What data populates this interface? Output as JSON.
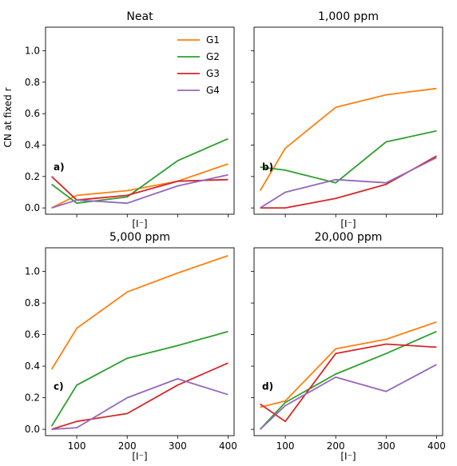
{
  "figure": {
    "ylabel": "CN at fixed r",
    "xlabel": "[I⁻]"
  },
  "legend": {
    "entries": [
      {
        "name": "G1",
        "color": "#ff7f0e"
      },
      {
        "name": "G2",
        "color": "#2ca02c"
      },
      {
        "name": "G3",
        "color": "#d62728"
      },
      {
        "name": "G4",
        "color": "#9467bd"
      }
    ]
  },
  "axes": {
    "xticks": [
      100,
      200,
      300,
      400
    ],
    "yticks": [
      "0.0",
      "0.2",
      "0.4",
      "0.6",
      "0.8",
      "1.0"
    ],
    "xlim": [
      38,
      412
    ],
    "ylim": [
      -0.04,
      1.15
    ]
  },
  "chart_data": [
    {
      "type": "line",
      "title": "Neat",
      "panel_label": "a)",
      "x": [
        50,
        100,
        200,
        300,
        400
      ],
      "series": [
        {
          "name": "G1",
          "values": [
            0.0,
            0.08,
            0.11,
            0.17,
            0.28
          ]
        },
        {
          "name": "G2",
          "values": [
            0.15,
            0.03,
            0.07,
            0.3,
            0.44
          ]
        },
        {
          "name": "G3",
          "values": [
            0.2,
            0.05,
            0.08,
            0.17,
            0.18
          ]
        },
        {
          "name": "G4",
          "values": [
            0.0,
            0.05,
            0.03,
            0.14,
            0.21
          ]
        }
      ]
    },
    {
      "type": "line",
      "title": "1,000 ppm",
      "panel_label": "b)",
      "x": [
        50,
        100,
        200,
        300,
        400
      ],
      "series": [
        {
          "name": "G1",
          "values": [
            0.11,
            0.38,
            0.64,
            0.72,
            0.76
          ]
        },
        {
          "name": "G2",
          "values": [
            0.26,
            0.24,
            0.16,
            0.42,
            0.49
          ]
        },
        {
          "name": "G3",
          "values": [
            0.0,
            0.0,
            0.06,
            0.15,
            0.33
          ]
        },
        {
          "name": "G4",
          "values": [
            0.0,
            0.1,
            0.18,
            0.16,
            0.32
          ]
        }
      ]
    },
    {
      "type": "line",
      "title": "5,000 ppm",
      "panel_label": "c)",
      "x": [
        50,
        100,
        200,
        300,
        400
      ],
      "series": [
        {
          "name": "G1",
          "values": [
            0.38,
            0.64,
            0.87,
            0.99,
            1.1
          ]
        },
        {
          "name": "G2",
          "values": [
            0.02,
            0.28,
            0.45,
            0.53,
            0.62
          ]
        },
        {
          "name": "G3",
          "values": [
            0.0,
            0.05,
            0.1,
            0.28,
            0.42
          ]
        },
        {
          "name": "G4",
          "values": [
            0.0,
            0.01,
            0.2,
            0.32,
            0.22
          ]
        }
      ]
    },
    {
      "type": "line",
      "title": "20,000 ppm",
      "panel_label": "d)",
      "x": [
        50,
        100,
        200,
        300,
        400
      ],
      "series": [
        {
          "name": "G1",
          "values": [
            0.14,
            0.18,
            0.51,
            0.57,
            0.68
          ]
        },
        {
          "name": "G2",
          "values": [
            0.0,
            0.17,
            0.35,
            0.48,
            0.62
          ]
        },
        {
          "name": "G3",
          "values": [
            0.16,
            0.05,
            0.48,
            0.54,
            0.52
          ]
        },
        {
          "name": "G4",
          "values": [
            0.0,
            0.15,
            0.33,
            0.24,
            0.41
          ]
        }
      ]
    }
  ]
}
